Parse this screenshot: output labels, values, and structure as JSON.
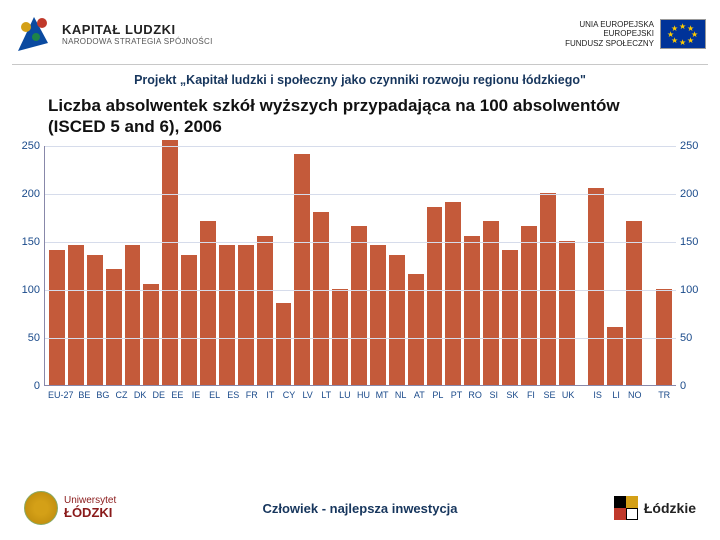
{
  "header": {
    "kl_title": "KAPITAŁ LUDZKI",
    "kl_sub": "NARODOWA STRATEGIA SPÓJNOŚCI",
    "eu_line1": "UNIA EUROPEJSKA",
    "eu_line2": "EUROPEJSKI",
    "eu_line3": "FUNDUSZ SPOŁECZNY"
  },
  "project_title": "Projekt „Kapitał ludzki i społeczny jako czynniki rozwoju regionu łódzkiego\"",
  "chart_title": "Liczba absolwentek szkół wyższych przypadająca na 100 absolwentów (ISCED 5 and 6), 2006",
  "chart": {
    "type": "bar",
    "ymax": 250,
    "ytick_step": 50,
    "bar_color": "#c45a3a",
    "grid_color": "#d6dceb",
    "axis_color": "#1a4a8a",
    "background": "#ffffff",
    "y_ticks": [
      0,
      50,
      100,
      150,
      200,
      250
    ],
    "groups": [
      {
        "labels": [
          "EU-27",
          "BE",
          "BG",
          "CZ",
          "DK",
          "DE",
          "EE",
          "IE",
          "EL",
          "ES",
          "FR",
          "IT",
          "CY",
          "LV",
          "LT",
          "LU",
          "HU",
          "MT",
          "NL",
          "AT",
          "PL",
          "PT",
          "RO",
          "SI",
          "SK",
          "FI",
          "SE",
          "UK"
        ],
        "values": [
          140,
          145,
          135,
          120,
          145,
          105,
          255,
          135,
          170,
          145,
          145,
          155,
          85,
          240,
          180,
          100,
          165,
          145,
          135,
          115,
          185,
          190,
          155,
          170,
          140,
          165,
          200,
          150
        ]
      },
      {
        "labels": [
          "IS",
          "LI",
          "NO"
        ],
        "values": [
          205,
          60,
          170
        ]
      },
      {
        "labels": [
          "TR"
        ],
        "values": [
          100
        ]
      }
    ]
  },
  "footer": {
    "center": "Człowiek - najlepsza inwestycja",
    "ul_line1": "Uniwersytet",
    "ul_line2": "ŁÓDZKI",
    "lodzkie": "Łódzkie"
  }
}
